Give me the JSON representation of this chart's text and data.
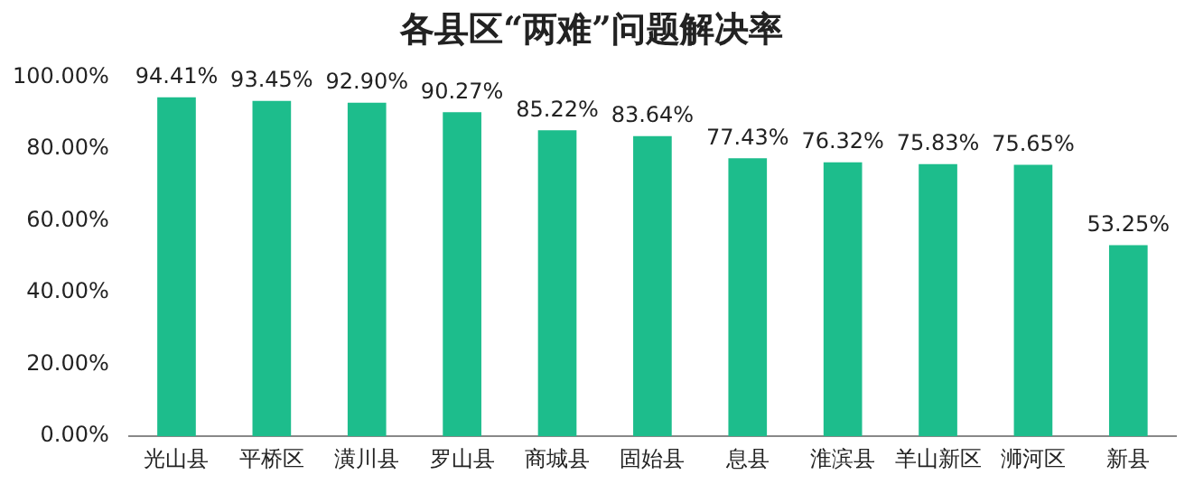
{
  "chart_data": {
    "type": "bar",
    "title": "各县区“两难”问题解决率",
    "categories": [
      "光山县",
      "平桥区",
      "潢川县",
      "罗山县",
      "商城县",
      "固始县",
      "息县",
      "淮滨县",
      "羊山新区",
      "浉河区",
      "新县"
    ],
    "values": [
      94.41,
      93.45,
      92.9,
      90.27,
      85.22,
      83.64,
      77.43,
      76.32,
      75.83,
      75.65,
      53.25
    ],
    "value_labels": [
      "94.41%",
      "93.45%",
      "92.90%",
      "90.27%",
      "85.22%",
      "83.64%",
      "77.43%",
      "76.32%",
      "75.83%",
      "75.65%",
      "53.25%"
    ],
    "color": "#1dbd8c",
    "ylim": [
      0,
      100
    ],
    "yticks": [
      {
        "value": 0,
        "label": "0.00%"
      },
      {
        "value": 20,
        "label": "20.00%"
      },
      {
        "value": 40,
        "label": "40.00%"
      },
      {
        "value": 60,
        "label": "60.00%"
      },
      {
        "value": 80,
        "label": "80.00%"
      },
      {
        "value": 100,
        "label": "100.00%"
      }
    ],
    "grid": false,
    "legend": false
  }
}
